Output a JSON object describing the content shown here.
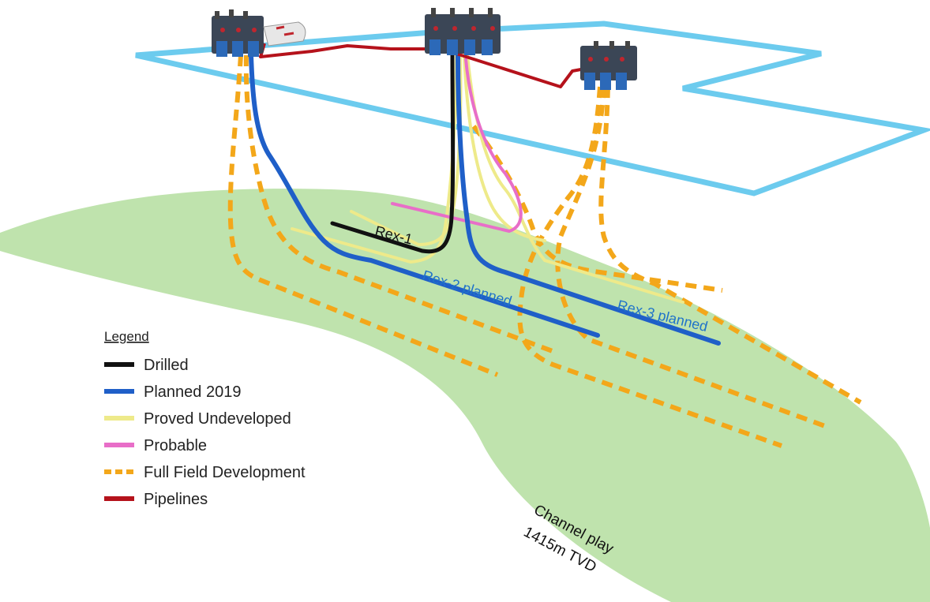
{
  "colors": {
    "reservoir": "#bfe3ad",
    "boundary": "#6ccbee",
    "drilled": "#111111",
    "planned": "#1f5fc8",
    "proved": "#eeea8a",
    "probable": "#e86ec8",
    "full_field": "#f3a71a",
    "pipeline": "#b5121b",
    "label_blue": "#1f73c9"
  },
  "well_labels": {
    "rex1": "Rex-1",
    "rex2": "Rex-2 planned",
    "rex3": "Rex-3 planned"
  },
  "channel": {
    "line1": "Channel play",
    "line2": "1415m TVD"
  },
  "legend": {
    "title": "Legend",
    "items": [
      {
        "label": "Drilled",
        "style": "solid",
        "color": "#111111"
      },
      {
        "label": "Planned 2019",
        "style": "solid",
        "color": "#1f5fc8"
      },
      {
        "label": "Proved Undeveloped",
        "style": "solid",
        "color": "#eeea8a"
      },
      {
        "label": "Probable",
        "style": "solid",
        "color": "#e86ec8"
      },
      {
        "label": "Full Field Development",
        "style": "dashed",
        "color": "#f3a71a"
      },
      {
        "label": "Pipelines",
        "style": "solid",
        "color": "#b5121b"
      }
    ]
  }
}
